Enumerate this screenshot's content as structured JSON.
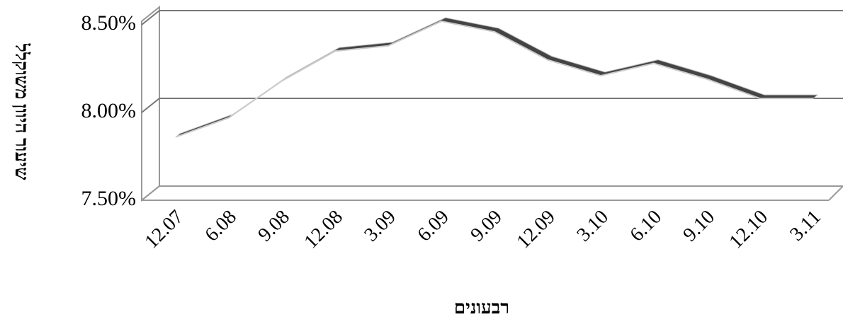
{
  "chart_data": {
    "type": "line",
    "y_label": "שיעור היוון משוקלל",
    "x_label": "רבעונים",
    "categories": [
      "12.07",
      "6.08",
      "9.08",
      "12.08",
      "3.09",
      "6.09",
      "9.09",
      "12.09",
      "3.10",
      "6.10",
      "9.10",
      "12.10",
      "3.11"
    ],
    "values": [
      7.86,
      7.97,
      8.18,
      8.35,
      8.38,
      8.52,
      8.46,
      8.3,
      8.21,
      8.28,
      8.19,
      8.08,
      8.08
    ],
    "color": "#444444",
    "ylim": [
      7.5,
      8.5
    ],
    "yticks": [
      {
        "value": 7.5,
        "label": "7.50%"
      },
      {
        "value": 8.0,
        "label": "8.00%"
      },
      {
        "value": 8.5,
        "label": "8.50%"
      }
    ],
    "grid": true
  }
}
